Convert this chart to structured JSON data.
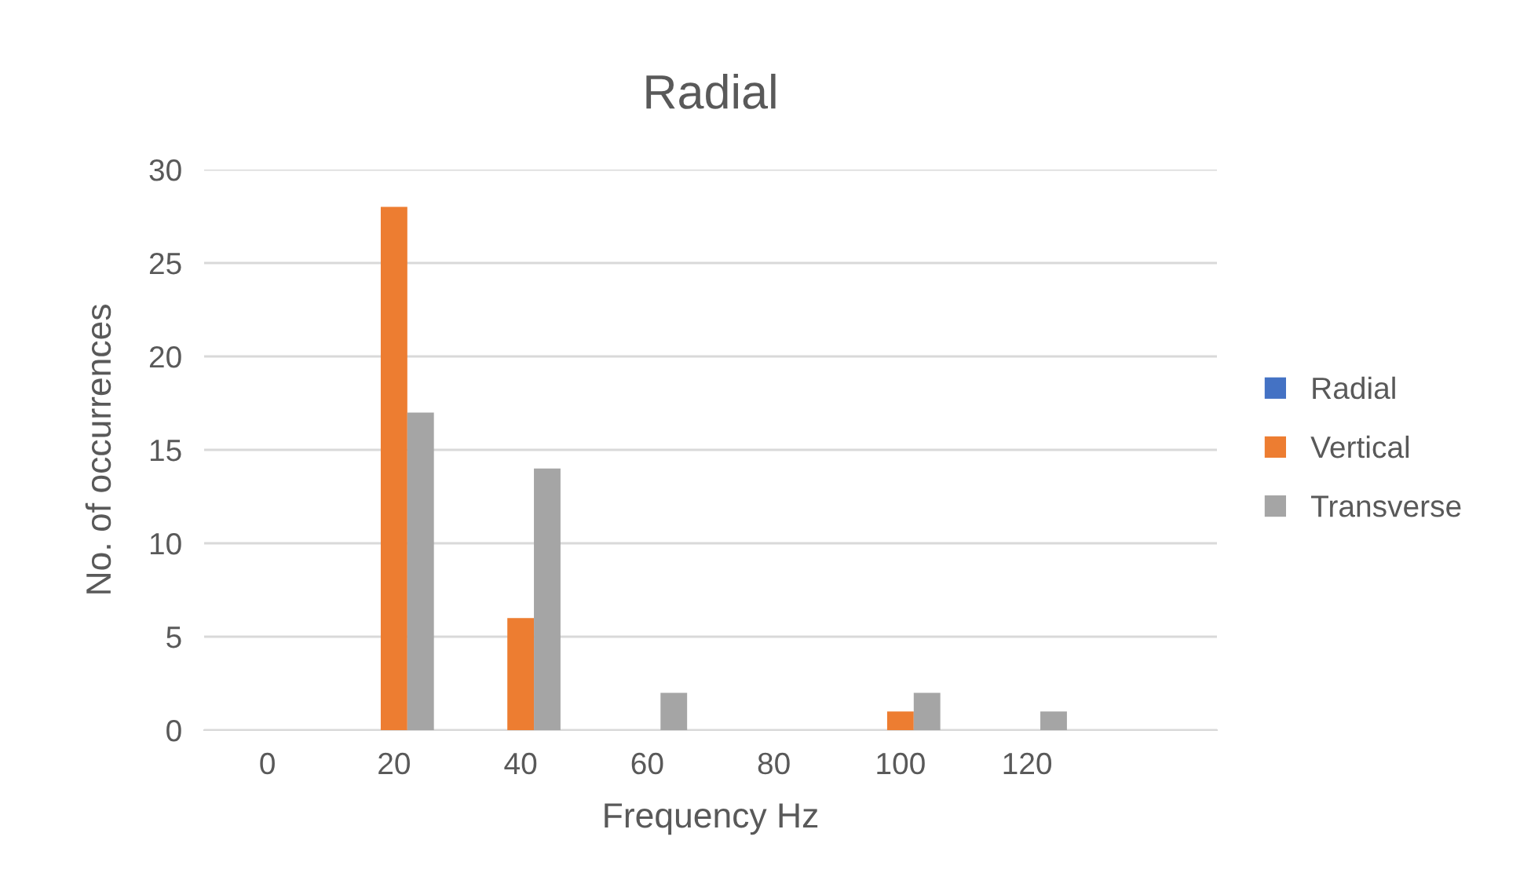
{
  "chart_data": {
    "type": "bar",
    "title": "Radial",
    "xlabel": "Frequency Hz",
    "ylabel": "No. of occurrences",
    "categories": [
      "0",
      "20",
      "40",
      "60",
      "80",
      "100",
      "120",
      null
    ],
    "series": [
      {
        "name": "Radial",
        "color": "#4472c4",
        "values": [
          null,
          null,
          null,
          null,
          null,
          null,
          null,
          null
        ]
      },
      {
        "name": "Vertical",
        "color": "#ed7d31",
        "values": [
          null,
          28,
          6,
          null,
          null,
          1,
          null,
          null
        ]
      },
      {
        "name": "Transverse",
        "color": "#a5a5a5",
        "values": [
          null,
          17,
          14,
          2,
          null,
          2,
          1,
          null
        ]
      }
    ],
    "ylim": [
      0,
      30
    ],
    "yticks": [
      0,
      5,
      10,
      15,
      20,
      25,
      30
    ],
    "grid": "y",
    "legend": "right"
  }
}
